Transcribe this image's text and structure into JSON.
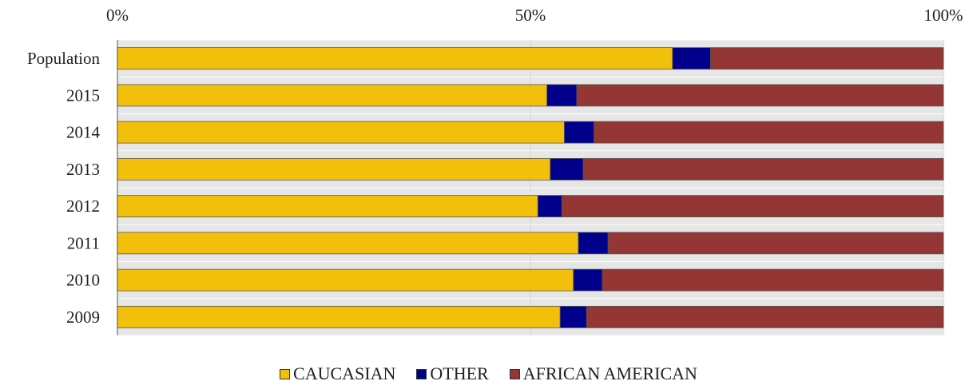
{
  "chart_data": {
    "type": "bar",
    "orientation": "horizontal",
    "stacked": "percent",
    "categories": [
      "Population",
      "2015",
      "2014",
      "2013",
      "2012",
      "2011",
      "2010",
      "2009"
    ],
    "series": [
      {
        "name": "CAUCASIAN",
        "color": "#f2c00a",
        "values": [
          67.2,
          52.0,
          54.1,
          52.4,
          50.9,
          55.8,
          55.2,
          53.6
        ]
      },
      {
        "name": "OTHER",
        "color": "#00008b",
        "values": [
          4.6,
          3.6,
          3.6,
          4.0,
          2.9,
          3.6,
          3.5,
          3.2
        ]
      },
      {
        "name": "AFRICAN AMERICAN",
        "color": "#943634",
        "values": [
          28.2,
          44.4,
          42.3,
          43.6,
          46.2,
          40.6,
          41.3,
          43.2
        ]
      }
    ],
    "x_ticks": [
      "0%",
      "50%",
      "100%"
    ],
    "xlim": [
      0,
      100
    ],
    "x_axis_position": "top",
    "grid": true,
    "legend_position": "bottom",
    "title": "",
    "xlabel": "",
    "ylabel": ""
  }
}
